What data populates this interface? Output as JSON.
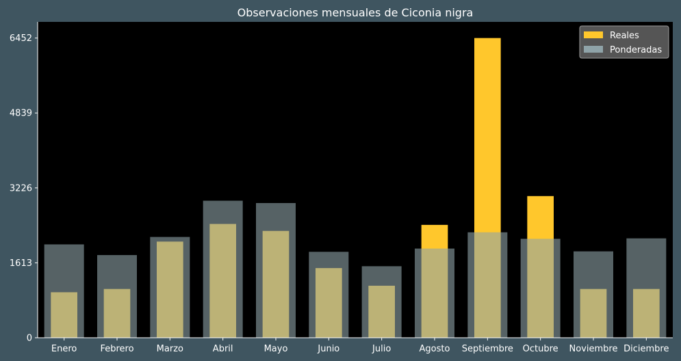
{
  "chart_data": {
    "type": "bar",
    "title": "Observaciones mensuales de Ciconia nigra",
    "xlabel": "",
    "ylabel": "",
    "categories": [
      "Enero",
      "Febrero",
      "Marzo",
      "Abril",
      "Mayo",
      "Junio",
      "Julio",
      "Agosto",
      "Septiembre",
      "Octubre",
      "Noviembre",
      "Diciembre"
    ],
    "series": [
      {
        "name": "Reales",
        "color": "#ffc72c",
        "values": [
          980,
          1050,
          2070,
          2450,
          2300,
          1500,
          1120,
          2430,
          6452,
          3050,
          1050,
          1050
        ]
      },
      {
        "name": "Ponderadas",
        "color": "#8fa3a8",
        "values": [
          2010,
          1780,
          2170,
          2950,
          2900,
          1850,
          1540,
          1920,
          2270,
          2130,
          1860,
          2140
        ]
      }
    ],
    "yticks": [
      0,
      1613,
      3226,
      4839,
      6452
    ],
    "ylim": [
      0,
      6800
    ],
    "grid": false,
    "legend_position": "top-right",
    "plot_background": "#000000",
    "figure_background": "#3f5560"
  }
}
